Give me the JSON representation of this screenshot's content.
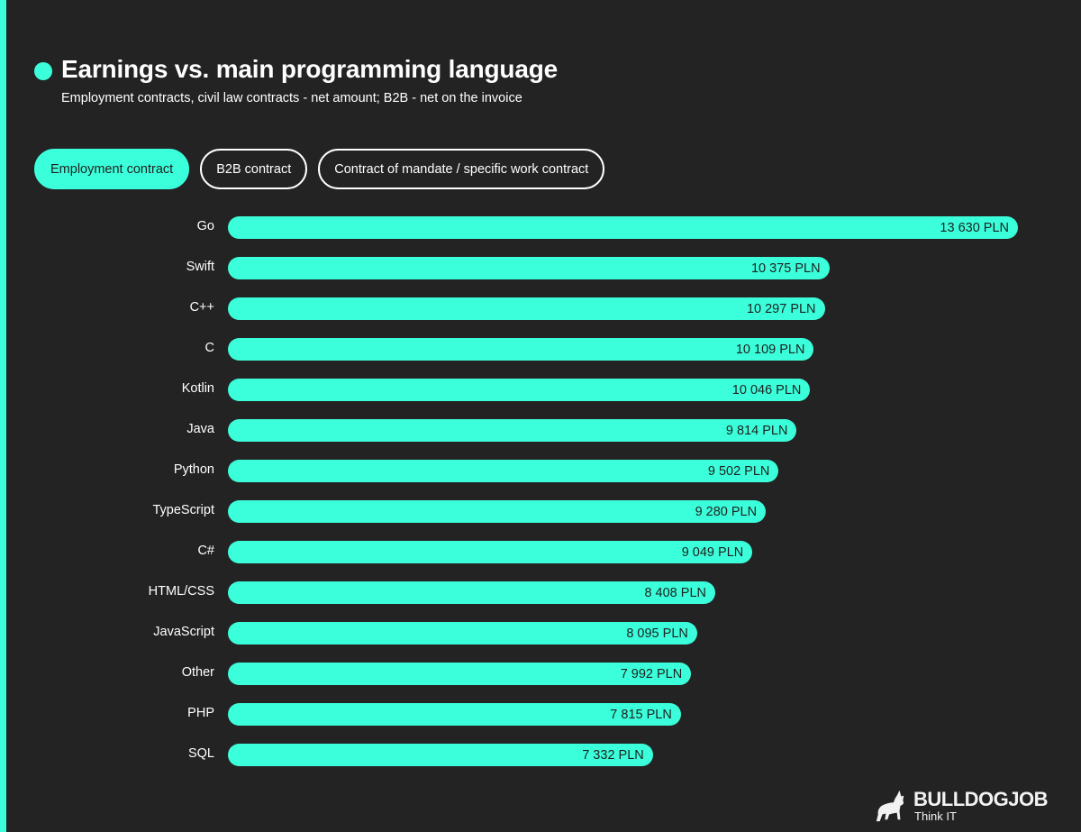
{
  "header": {
    "title": "Earnings vs. main programming language",
    "subtitle": "Employment contracts, civil law contracts - net amount; B2B - net on the invoice"
  },
  "tabs": [
    {
      "label": "Employment contract",
      "active": true
    },
    {
      "label": "B2B contract",
      "active": false
    },
    {
      "label": "Contract of mandate / specific work contract",
      "active": false
    }
  ],
  "colors": {
    "accent": "#3bffdb",
    "background": "#232323",
    "text": "#ffffff",
    "bar_text": "#1f1f1f"
  },
  "logo": {
    "brand": "BULLDOGJOB",
    "tagline": "Think IT"
  },
  "chart_data": {
    "type": "bar",
    "orientation": "horizontal",
    "title": "Earnings vs. main programming language",
    "subtitle": "Employment contracts, civil law contracts - net amount; B2B - net on the invoice",
    "selected_series": "Employment contract",
    "xlabel": "",
    "ylabel": "",
    "unit": "PLN",
    "grid": false,
    "legend": "none",
    "xlim": [
      0,
      13630
    ],
    "categories": [
      "Go",
      "Swift",
      "C++",
      "C",
      "Kotlin",
      "Java",
      "Python",
      "TypeScript",
      "C#",
      "HTML/CSS",
      "JavaScript",
      "Other",
      "PHP",
      "SQL"
    ],
    "values": [
      13630,
      10375,
      10297,
      10109,
      10046,
      9814,
      9502,
      9280,
      9049,
      8408,
      8095,
      7992,
      7815,
      7332
    ],
    "value_labels": [
      "13 630 PLN",
      "10 375 PLN",
      "10 297 PLN",
      "10 109 PLN",
      "10 046 PLN",
      "9 814 PLN",
      "9 502 PLN",
      "9 280 PLN",
      "9 049 PLN",
      "8 408 PLN",
      "8 095 PLN",
      "7 992 PLN",
      "7 815 PLN",
      "7 332 PLN"
    ]
  }
}
